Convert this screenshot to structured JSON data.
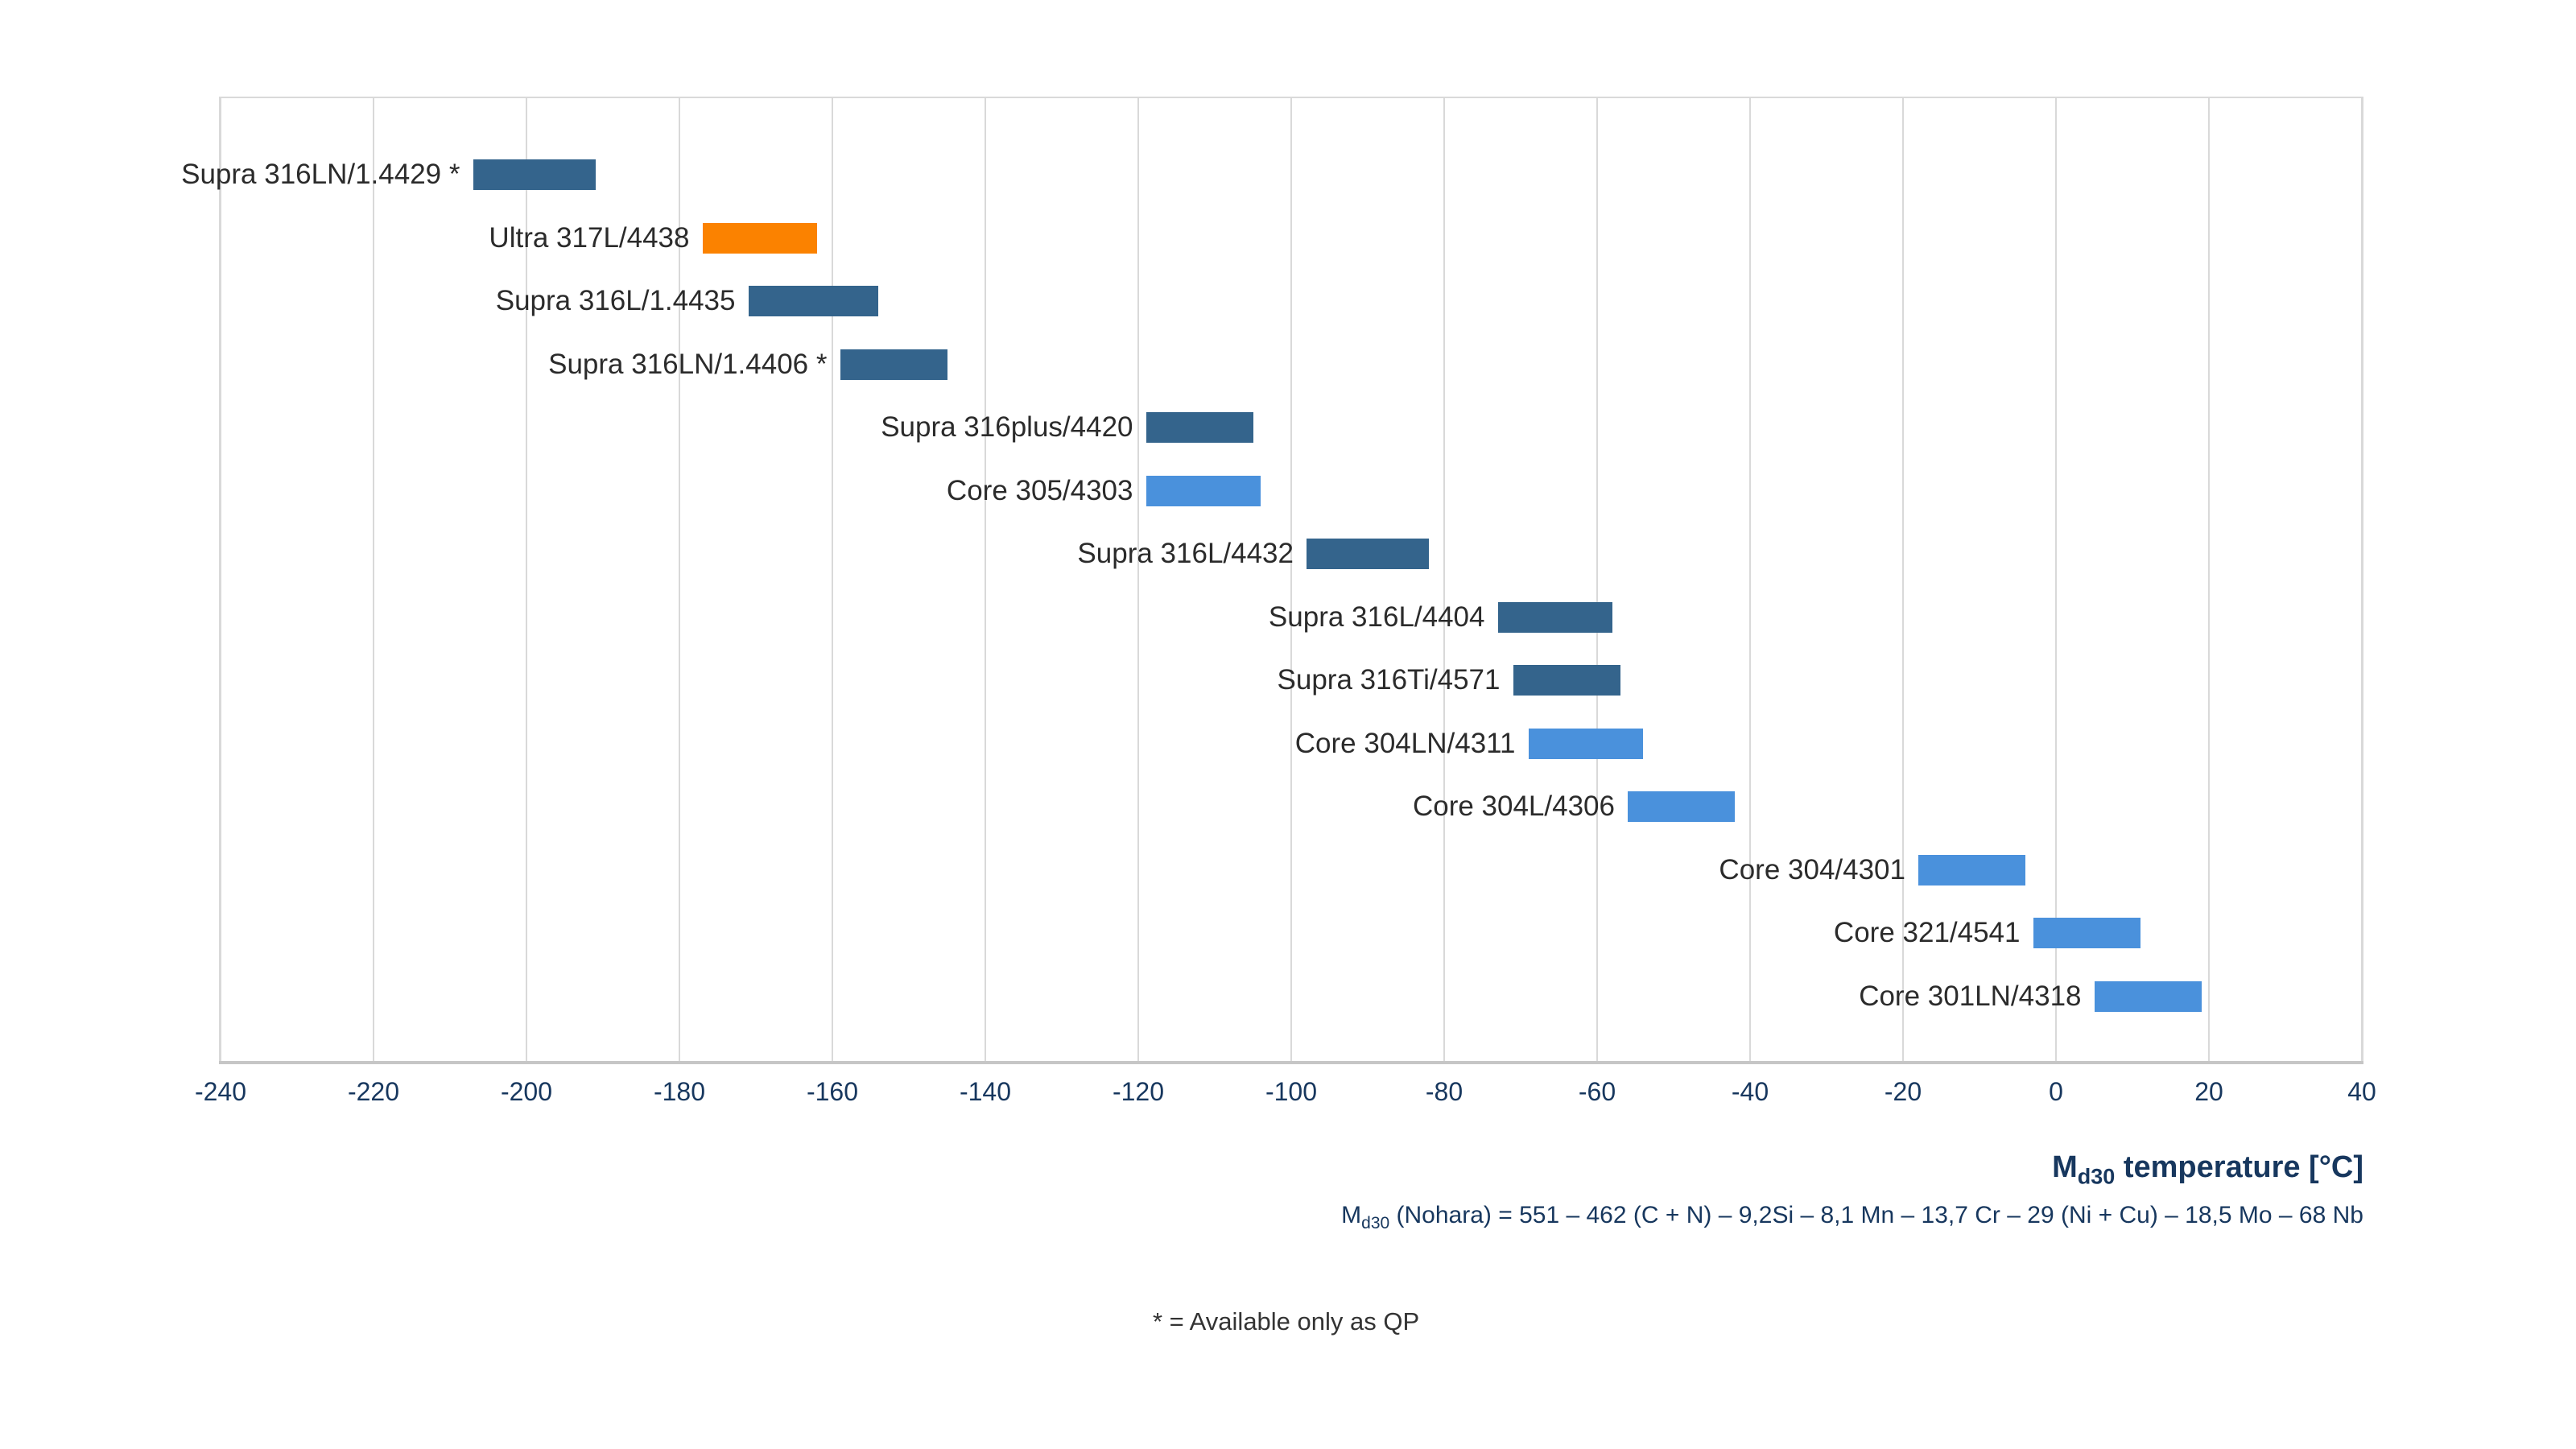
{
  "chart_data": {
    "type": "bar",
    "orientation": "horizontal",
    "title": "",
    "xlabel_parts": {
      "pre": "M",
      "sub": "d30",
      "post": " temperature [°C]"
    },
    "formula_parts": {
      "pre": "M",
      "sub": "d30",
      "post": " (Nohara) = 551 – 462 (C + N) – 9,2Si – 8,1 Mn – 13,7 Cr – 29 (Ni + Cu) – 18,5 Mo – 68 Nb"
    },
    "footnote": "* = Available only as QP",
    "x_axis": {
      "min": -240,
      "max": 40,
      "tick_step": 20,
      "ticks": [
        -240,
        -220,
        -200,
        -180,
        -160,
        -140,
        -120,
        -100,
        -80,
        -60,
        -40,
        -20,
        0,
        20,
        40
      ],
      "grid": true
    },
    "legend": "none",
    "colors": {
      "dark": "#34648c",
      "light": "#4a91dc",
      "orange": "#fb8200",
      "axis_text": "#17375e",
      "category_text": "#2b2b2b",
      "gridline": "#d9d9d9",
      "axis_line": "#c6c6c6",
      "background": "#ffffff"
    },
    "items": [
      {
        "label": "Supra 316LN/1.4429 *",
        "range": [
          -207,
          -191
        ],
        "color": "dark"
      },
      {
        "label": "Ultra 317L/4438",
        "range": [
          -177,
          -162
        ],
        "color": "orange"
      },
      {
        "label": "Supra 316L/1.4435",
        "range": [
          -171,
          -154
        ],
        "color": "dark"
      },
      {
        "label": "Supra 316LN/1.4406 *",
        "range": [
          -159,
          -145
        ],
        "color": "dark"
      },
      {
        "label": "Supra 316plus/4420",
        "range": [
          -119,
          -105
        ],
        "color": "dark"
      },
      {
        "label": "Core 305/4303",
        "range": [
          -119,
          -104
        ],
        "color": "light"
      },
      {
        "label": "Supra 316L/4432",
        "range": [
          -98,
          -82
        ],
        "color": "dark"
      },
      {
        "label": "Supra 316L/4404",
        "range": [
          -73,
          -58
        ],
        "color": "dark"
      },
      {
        "label": "Supra 316Ti/4571",
        "range": [
          -71,
          -57
        ],
        "color": "dark"
      },
      {
        "label": "Core 304LN/4311",
        "range": [
          -69,
          -54
        ],
        "color": "light"
      },
      {
        "label": "Core 304L/4306",
        "range": [
          -56,
          -42
        ],
        "color": "light"
      },
      {
        "label": "Core 304/4301",
        "range": [
          -18,
          -4
        ],
        "color": "light"
      },
      {
        "label": "Core 321/4541",
        "range": [
          -3,
          11
        ],
        "color": "light"
      },
      {
        "label": "Core 301LN/4318",
        "range": [
          5,
          19
        ],
        "color": "light"
      }
    ]
  }
}
